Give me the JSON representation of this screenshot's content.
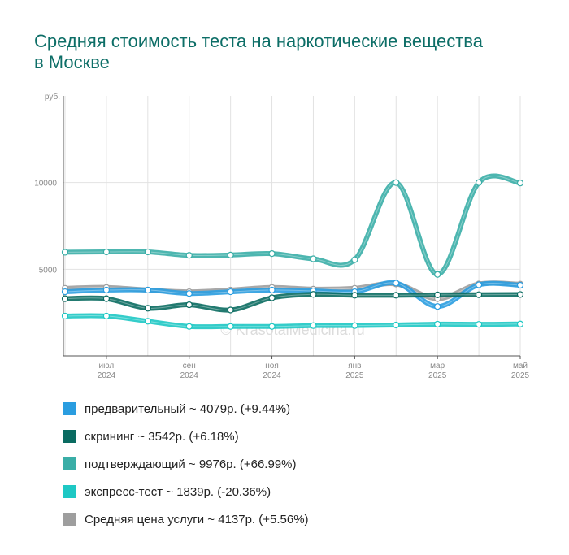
{
  "title": "Средняя стоимость теста на наркотические вещества в Москве",
  "watermark": "© KrasotaiMedicina.ru",
  "chart_data": {
    "type": "line",
    "y_unit_label": "руб.",
    "ylim": [
      0,
      15000
    ],
    "yticks": [
      5000,
      10000
    ],
    "ytick_labels": [
      "5000",
      "10000"
    ],
    "x": [
      "2024-06",
      "2024-07",
      "2024-08",
      "2024-09",
      "2024-10",
      "2024-11",
      "2024-12",
      "2025-01",
      "2025-02",
      "2025-03",
      "2025-04",
      "2025-05"
    ],
    "xtick_labels": [
      {
        "month": "июл",
        "year": "2024",
        "index": 1
      },
      {
        "month": "сен",
        "year": "2024",
        "index": 3
      },
      {
        "month": "ноя",
        "year": "2024",
        "index": 5
      },
      {
        "month": "янв",
        "year": "2025",
        "index": 7
      },
      {
        "month": "мар",
        "year": "2025",
        "index": 9
      },
      {
        "month": "май",
        "year": "2025",
        "index": 11
      }
    ],
    "grid": true,
    "legend_position": "bottom",
    "series": [
      {
        "name": "подтверждающий",
        "color": "#3aaea7",
        "values": [
          5980,
          6000,
          6000,
          5800,
          5820,
          5900,
          5600,
          5550,
          10000,
          4700,
          10000,
          9976
        ]
      },
      {
        "name": "Средняя цена услуги",
        "color": "#9e9e9e",
        "values": [
          3900,
          3950,
          3800,
          3700,
          3800,
          3950,
          3850,
          3900,
          4150,
          3300,
          4150,
          4137
        ]
      },
      {
        "name": "предварительный",
        "color": "#2a9de0",
        "values": [
          3700,
          3800,
          3800,
          3600,
          3700,
          3800,
          3750,
          3700,
          4200,
          2850,
          4100,
          4079
        ]
      },
      {
        "name": "скрининг",
        "color": "#0a6b61",
        "values": [
          3300,
          3300,
          2750,
          2950,
          2650,
          3350,
          3550,
          3500,
          3500,
          3520,
          3530,
          3542
        ]
      },
      {
        "name": "экспресс-тест",
        "color": "#1ec8c4",
        "values": [
          2300,
          2300,
          2000,
          1700,
          1700,
          1700,
          1750,
          1750,
          1780,
          1830,
          1820,
          1839
        ]
      }
    ]
  },
  "legend": [
    {
      "label": "предварительный ~ 4079р. (+9.44%)",
      "color": "#2a9de0"
    },
    {
      "label": "скрининг ~ 3542р. (+6.18%)",
      "color": "#0a6b61"
    },
    {
      "label": "подтверждающий ~ 9976р. (+66.99%)",
      "color": "#3aaea7"
    },
    {
      "label": "экспресс-тест ~ 1839р. (-20.36%)",
      "color": "#1ec8c4"
    },
    {
      "label": "Средняя цена услуги ~ 4137р. (+5.56%)",
      "color": "#9e9e9e"
    }
  ]
}
